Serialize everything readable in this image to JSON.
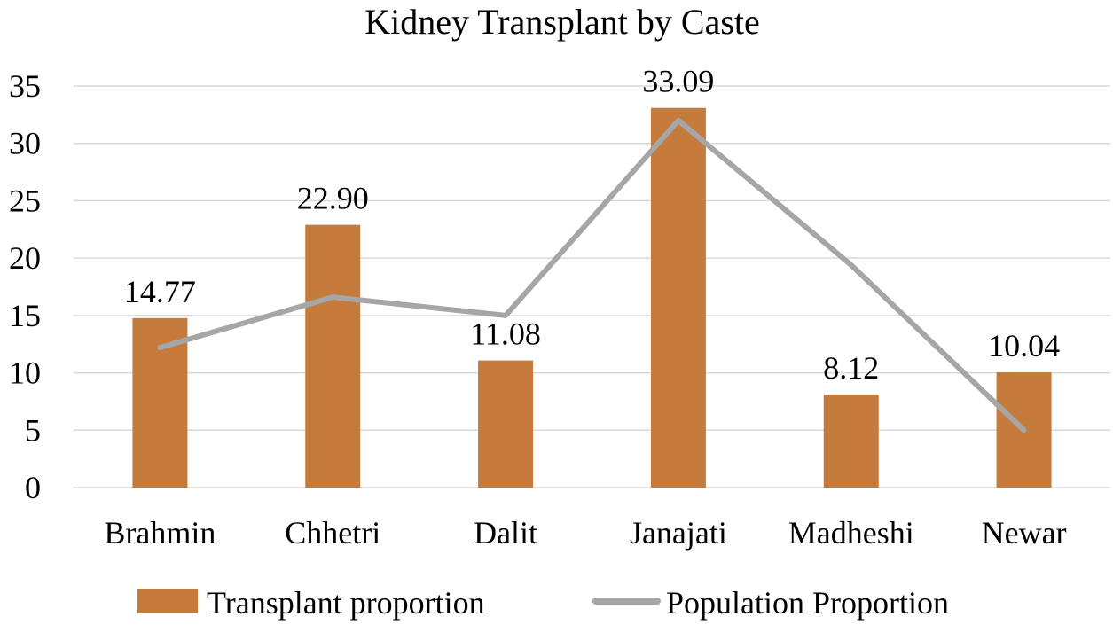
{
  "chart_data": {
    "type": "bar",
    "title": "Kidney Transplant by Caste",
    "xlabel": "",
    "ylabel": "",
    "categories": [
      "Brahmin",
      "Chhetri",
      "Dalit",
      "Janajati",
      "Madheshi",
      "Newar"
    ],
    "ylim": [
      0,
      35
    ],
    "yticks": [
      0,
      5,
      10,
      15,
      20,
      25,
      30,
      35
    ],
    "grid": true,
    "legend_position": "bottom",
    "series": [
      {
        "name": "Transplant proportion",
        "kind": "bar",
        "color": "#c47b3b",
        "values": [
          14.77,
          22.9,
          11.08,
          33.09,
          8.12,
          10.04
        ],
        "labels": [
          "14.77",
          "22.90",
          "11.08",
          "33.09",
          "8.12",
          "10.04"
        ]
      },
      {
        "name": "Population Proportion",
        "kind": "line",
        "color": "#a6a6a6",
        "values": [
          12.2,
          16.6,
          15.0,
          32.0,
          19.4,
          5.0
        ]
      }
    ]
  }
}
